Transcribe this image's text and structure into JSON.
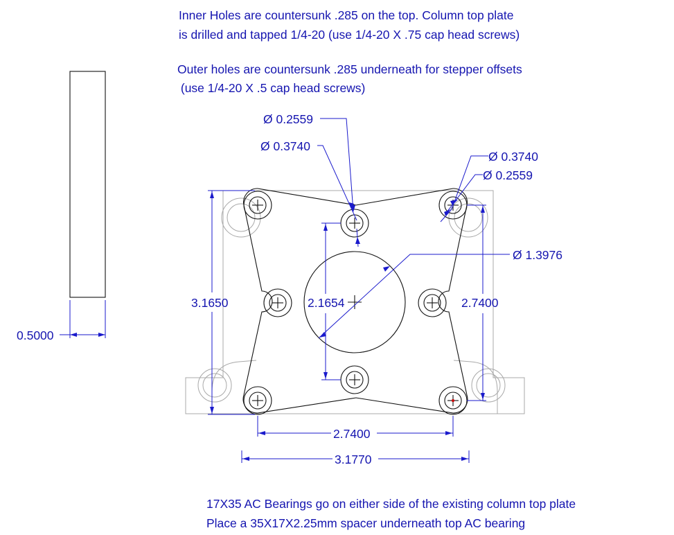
{
  "notes": {
    "inner_line1": "Inner Holes are countersunk .285 on the top.  Column top plate",
    "inner_line2": "is drilled and tapped 1/4-20 (use 1/4-20 X .75 cap head screws)",
    "outer_line1": "Outer holes are countersunk .285 underneath for stepper offsets",
    "outer_line2": " (use 1/4-20 X .5 cap head screws)",
    "bearing_line1": "17X35 AC Bearings go on either side of the existing column top plate",
    "bearing_line2": "Place a 35X17X2.25mm spacer underneath top AC bearing"
  },
  "dimensions": {
    "thickness": "0.5000",
    "dia_inner_hole": "Ø 0.2559",
    "dia_inner_cs": "Ø 0.3740",
    "dia_outer_cs": "Ø 0.3740",
    "dia_outer_hole": "Ø 0.2559",
    "dia_center_bore": "Ø 1.3976",
    "height_outer": "3.1650",
    "height_inner": "2.1654",
    "height_right": "2.7400",
    "width_holes": "2.7400",
    "width_overall": "3.1770"
  },
  "colors": {
    "dimension": "#1a1acc",
    "text": "#1515b0",
    "part_outline": "#111111",
    "background_part": "#a8a8a8",
    "center_mark": "#cc0000"
  }
}
